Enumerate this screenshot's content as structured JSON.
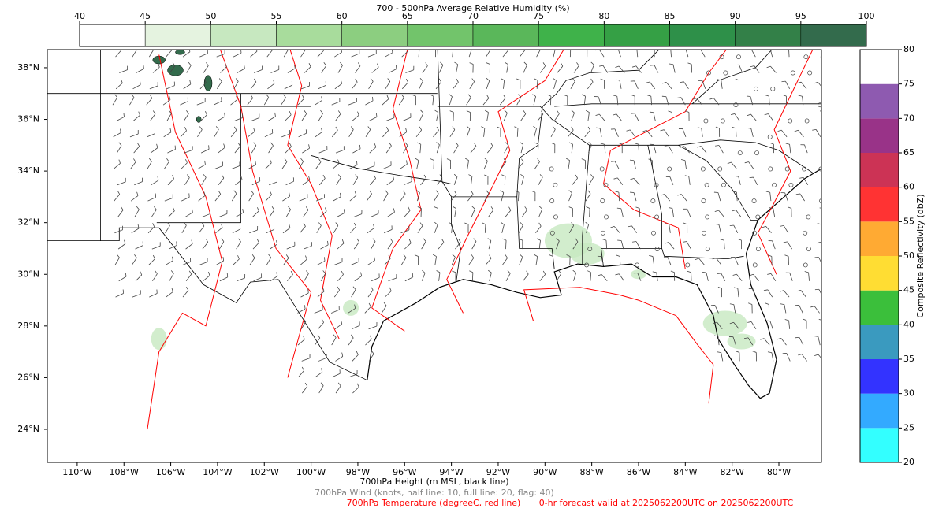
{
  "top_colorbar": {
    "title": "700 - 500hPa Average Relative Humidity (%)",
    "ticks": [
      40,
      45,
      50,
      55,
      60,
      65,
      70,
      75,
      80,
      85,
      90,
      95,
      100
    ],
    "colors": [
      "#ffffff",
      "#e5f3e0",
      "#c7e8c0",
      "#a8dc9c",
      "#8cce80",
      "#72c46b",
      "#5ab75a",
      "#3fb24a",
      "#35a045",
      "#2e9049",
      "#338048",
      "#336b4c"
    ]
  },
  "right_colorbar": {
    "label": "Composite Reflectivity (dbZ)",
    "ticks": [
      20,
      25,
      30,
      35,
      40,
      45,
      50,
      55,
      60,
      65,
      70,
      75,
      80
    ],
    "colors": [
      "#33ffff",
      "#33aaff",
      "#3333ff",
      "#3a9abf",
      "#3bbf3b",
      "#ffdd33",
      "#ffaa33",
      "#ff3333",
      "#cc3355",
      "#993388",
      "#8e5ab0",
      "#ffffff"
    ]
  },
  "map": {
    "lat_ticks": [
      {
        "value": 24,
        "label": "24°N"
      },
      {
        "value": 26,
        "label": "26°N"
      },
      {
        "value": 28,
        "label": "28°N"
      },
      {
        "value": 30,
        "label": "30°N"
      },
      {
        "value": 32,
        "label": "32°N"
      },
      {
        "value": 34,
        "label": "34°N"
      },
      {
        "value": 36,
        "label": "36°N"
      },
      {
        "value": 38,
        "label": "38°N"
      }
    ],
    "lon_ticks": [
      {
        "value": -110,
        "label": "110°W"
      },
      {
        "value": -108,
        "label": "108°W"
      },
      {
        "value": -106,
        "label": "106°W"
      },
      {
        "value": -104,
        "label": "104°W"
      },
      {
        "value": -102,
        "label": "102°W"
      },
      {
        "value": -100,
        "label": "100°W"
      },
      {
        "value": -98,
        "label": "98°W"
      },
      {
        "value": -96,
        "label": "96°W"
      },
      {
        "value": -94,
        "label": "94°W"
      },
      {
        "value": -92,
        "label": "92°W"
      },
      {
        "value": -90,
        "label": "90°W"
      },
      {
        "value": -88,
        "label": "88°W"
      },
      {
        "value": -86,
        "label": "86°W"
      },
      {
        "value": -84,
        "label": "84°W"
      },
      {
        "value": -82,
        "label": "82°W"
      },
      {
        "value": -80,
        "label": "80°W"
      }
    ]
  },
  "captions": {
    "height": "700hPa Height (m MSL, black line)",
    "wind": "700hPa Wind (knots, half line: 10, full line: 20, flag: 40)",
    "temperature": "700hPa Temperature (degreeC, red line)",
    "valid": "0-hr forecast valid at 2025062200UTC on 2025062200UTC"
  }
}
